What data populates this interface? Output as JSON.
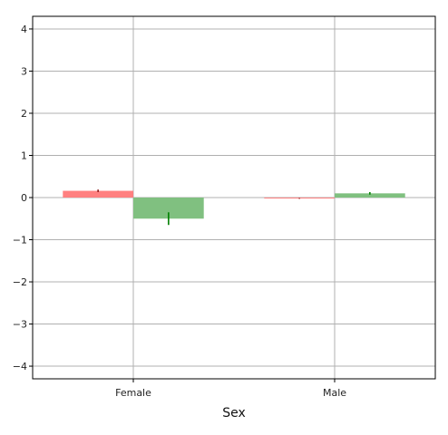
{
  "chart_data": {
    "type": "bar",
    "title": "",
    "xlabel": "Sex",
    "ylabel": "",
    "categories": [
      "Female",
      "Male"
    ],
    "ylim": [
      -4.3,
      4.3
    ],
    "yticks": [
      -4,
      -3,
      -2,
      -1,
      0,
      1,
      2,
      3,
      4
    ],
    "ytick_labels": [
      "−4",
      "−3",
      "−2",
      "−1",
      "0",
      "1",
      "2",
      "3",
      "4"
    ],
    "grid": true,
    "legend": "none",
    "series": [
      {
        "color": "#ff8080",
        "error_color": "#8b1a1a",
        "values": [
          0.16,
          -0.02
        ],
        "errors": [
          0.03,
          0.01
        ]
      },
      {
        "color": "#80c080",
        "error_color": "#008000",
        "values": [
          -0.5,
          0.1
        ],
        "errors": [
          0.15,
          0.03
        ]
      }
    ]
  }
}
